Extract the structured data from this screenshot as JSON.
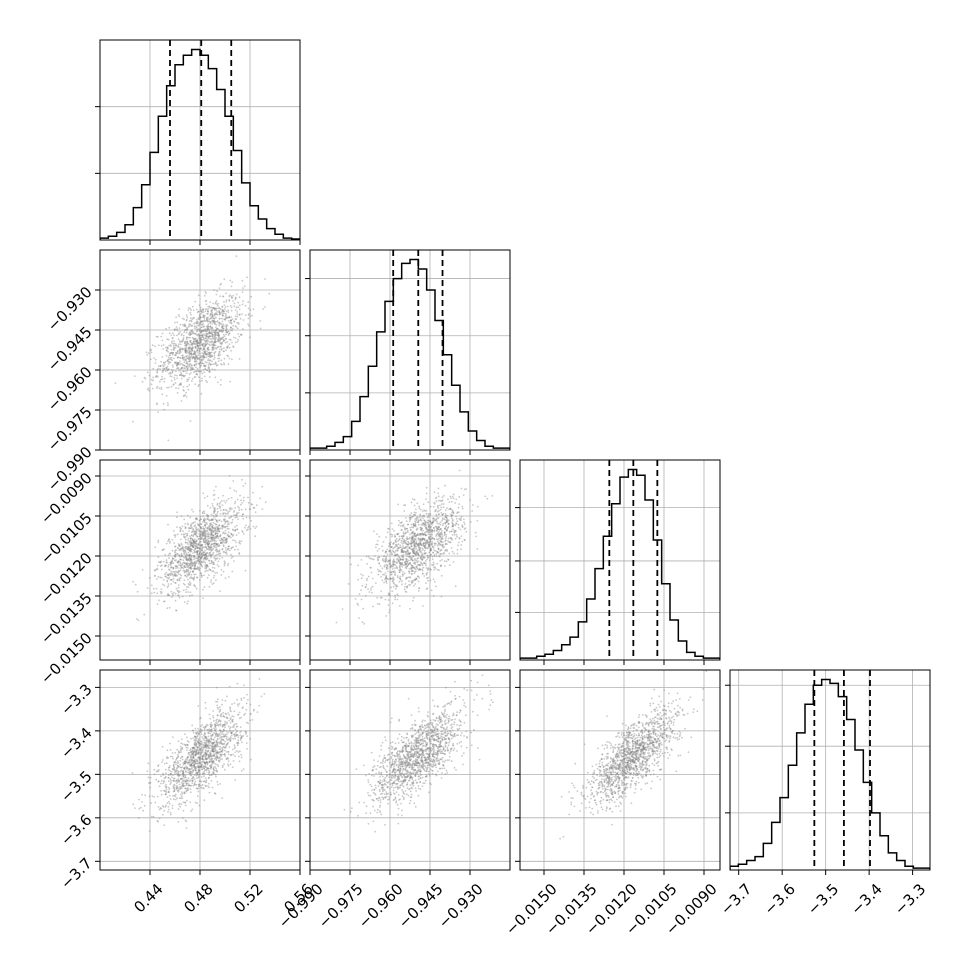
{
  "chart_data": {
    "type": "corner",
    "parameters": [
      {
        "ticks": [
          0.44,
          0.48,
          0.52,
          0.56
        ],
        "tick_labels": [
          "0.44",
          "0.48",
          "0.52",
          "0.56"
        ],
        "range": [
          0.4,
          0.56
        ],
        "hist_y_max": 1.0,
        "hist_y_ticks": [
          0.35,
          0.7
        ],
        "histogram": [
          0.01,
          0.02,
          0.04,
          0.08,
          0.17,
          0.29,
          0.46,
          0.65,
          0.81,
          0.92,
          0.97,
          1.0,
          0.97,
          0.9,
          0.79,
          0.65,
          0.47,
          0.3,
          0.18,
          0.11,
          0.06,
          0.03,
          0.01,
          0.005
        ],
        "quantiles": [
          0.456,
          0.481,
          0.505
        ],
        "mean": 0.481,
        "sd": 0.017
      },
      {
        "ticks": [
          -0.99,
          -0.975,
          -0.96,
          -0.945,
          -0.93
        ],
        "tick_labels": [
          "−0.990",
          "−0.975",
          "−0.960",
          "−0.945",
          "−0.930"
        ],
        "range": [
          -0.99,
          -0.915
        ],
        "hist_y_max": 1.0,
        "hist_y_ticks": [
          0.3,
          0.6,
          0.9
        ],
        "histogram": [
          0.01,
          0.01,
          0.02,
          0.04,
          0.07,
          0.15,
          0.28,
          0.44,
          0.62,
          0.78,
          0.9,
          0.98,
          1.0,
          0.95,
          0.84,
          0.68,
          0.5,
          0.34,
          0.2,
          0.1,
          0.05,
          0.02,
          0.01,
          0.01
        ],
        "quantiles": [
          -0.9588,
          -0.9494,
          -0.9403
        ],
        "mean": -0.9494,
        "sd": 0.0085
      },
      {
        "ticks": [
          -0.015,
          -0.0135,
          -0.012,
          -0.0105,
          -0.009
        ],
        "tick_labels": [
          "−0.0150",
          "−0.0135",
          "−0.0120",
          "−0.0105",
          "−0.0090"
        ],
        "range": [
          -0.0159,
          -0.0084
        ],
        "hist_y_max": 1.0,
        "hist_y_ticks": [
          0.25,
          0.52,
          0.8
        ],
        "histogram": [
          0.01,
          0.01,
          0.02,
          0.03,
          0.05,
          0.08,
          0.12,
          0.2,
          0.32,
          0.48,
          0.65,
          0.82,
          0.96,
          1.0,
          0.97,
          0.84,
          0.63,
          0.4,
          0.21,
          0.1,
          0.04,
          0.02,
          0.01,
          0.01
        ],
        "quantiles": [
          -0.01255,
          -0.01165,
          -0.01075
        ],
        "mean": -0.01165,
        "sd": 0.00085
      },
      {
        "ticks": [
          -3.7,
          -3.6,
          -3.5,
          -3.4,
          -3.3
        ],
        "tick_labels": [
          "−3.7",
          "−3.6",
          "−3.5",
          "−3.4",
          "−3.3"
        ],
        "range": [
          -3.72,
          -3.26
        ],
        "hist_y_max": 1.0,
        "hist_y_ticks": [
          0.3,
          0.65,
          0.97
        ],
        "histogram": [
          0.02,
          0.03,
          0.05,
          0.07,
          0.14,
          0.25,
          0.38,
          0.55,
          0.72,
          0.87,
          0.97,
          1.0,
          0.98,
          0.91,
          0.79,
          0.63,
          0.46,
          0.3,
          0.18,
          0.09,
          0.05,
          0.02,
          0.01,
          0.01
        ],
        "quantiles": [
          -3.526,
          -3.458,
          -3.398
        ],
        "mean": -3.458,
        "sd": 0.055
      }
    ],
    "correlations": {
      "1-0": 0.55,
      "2-0": 0.6,
      "2-1": 0.6,
      "3-0": 0.7,
      "3-1": 0.7,
      "3-2": 0.75
    },
    "grid": true,
    "quantile_line_style": "dashed"
  }
}
